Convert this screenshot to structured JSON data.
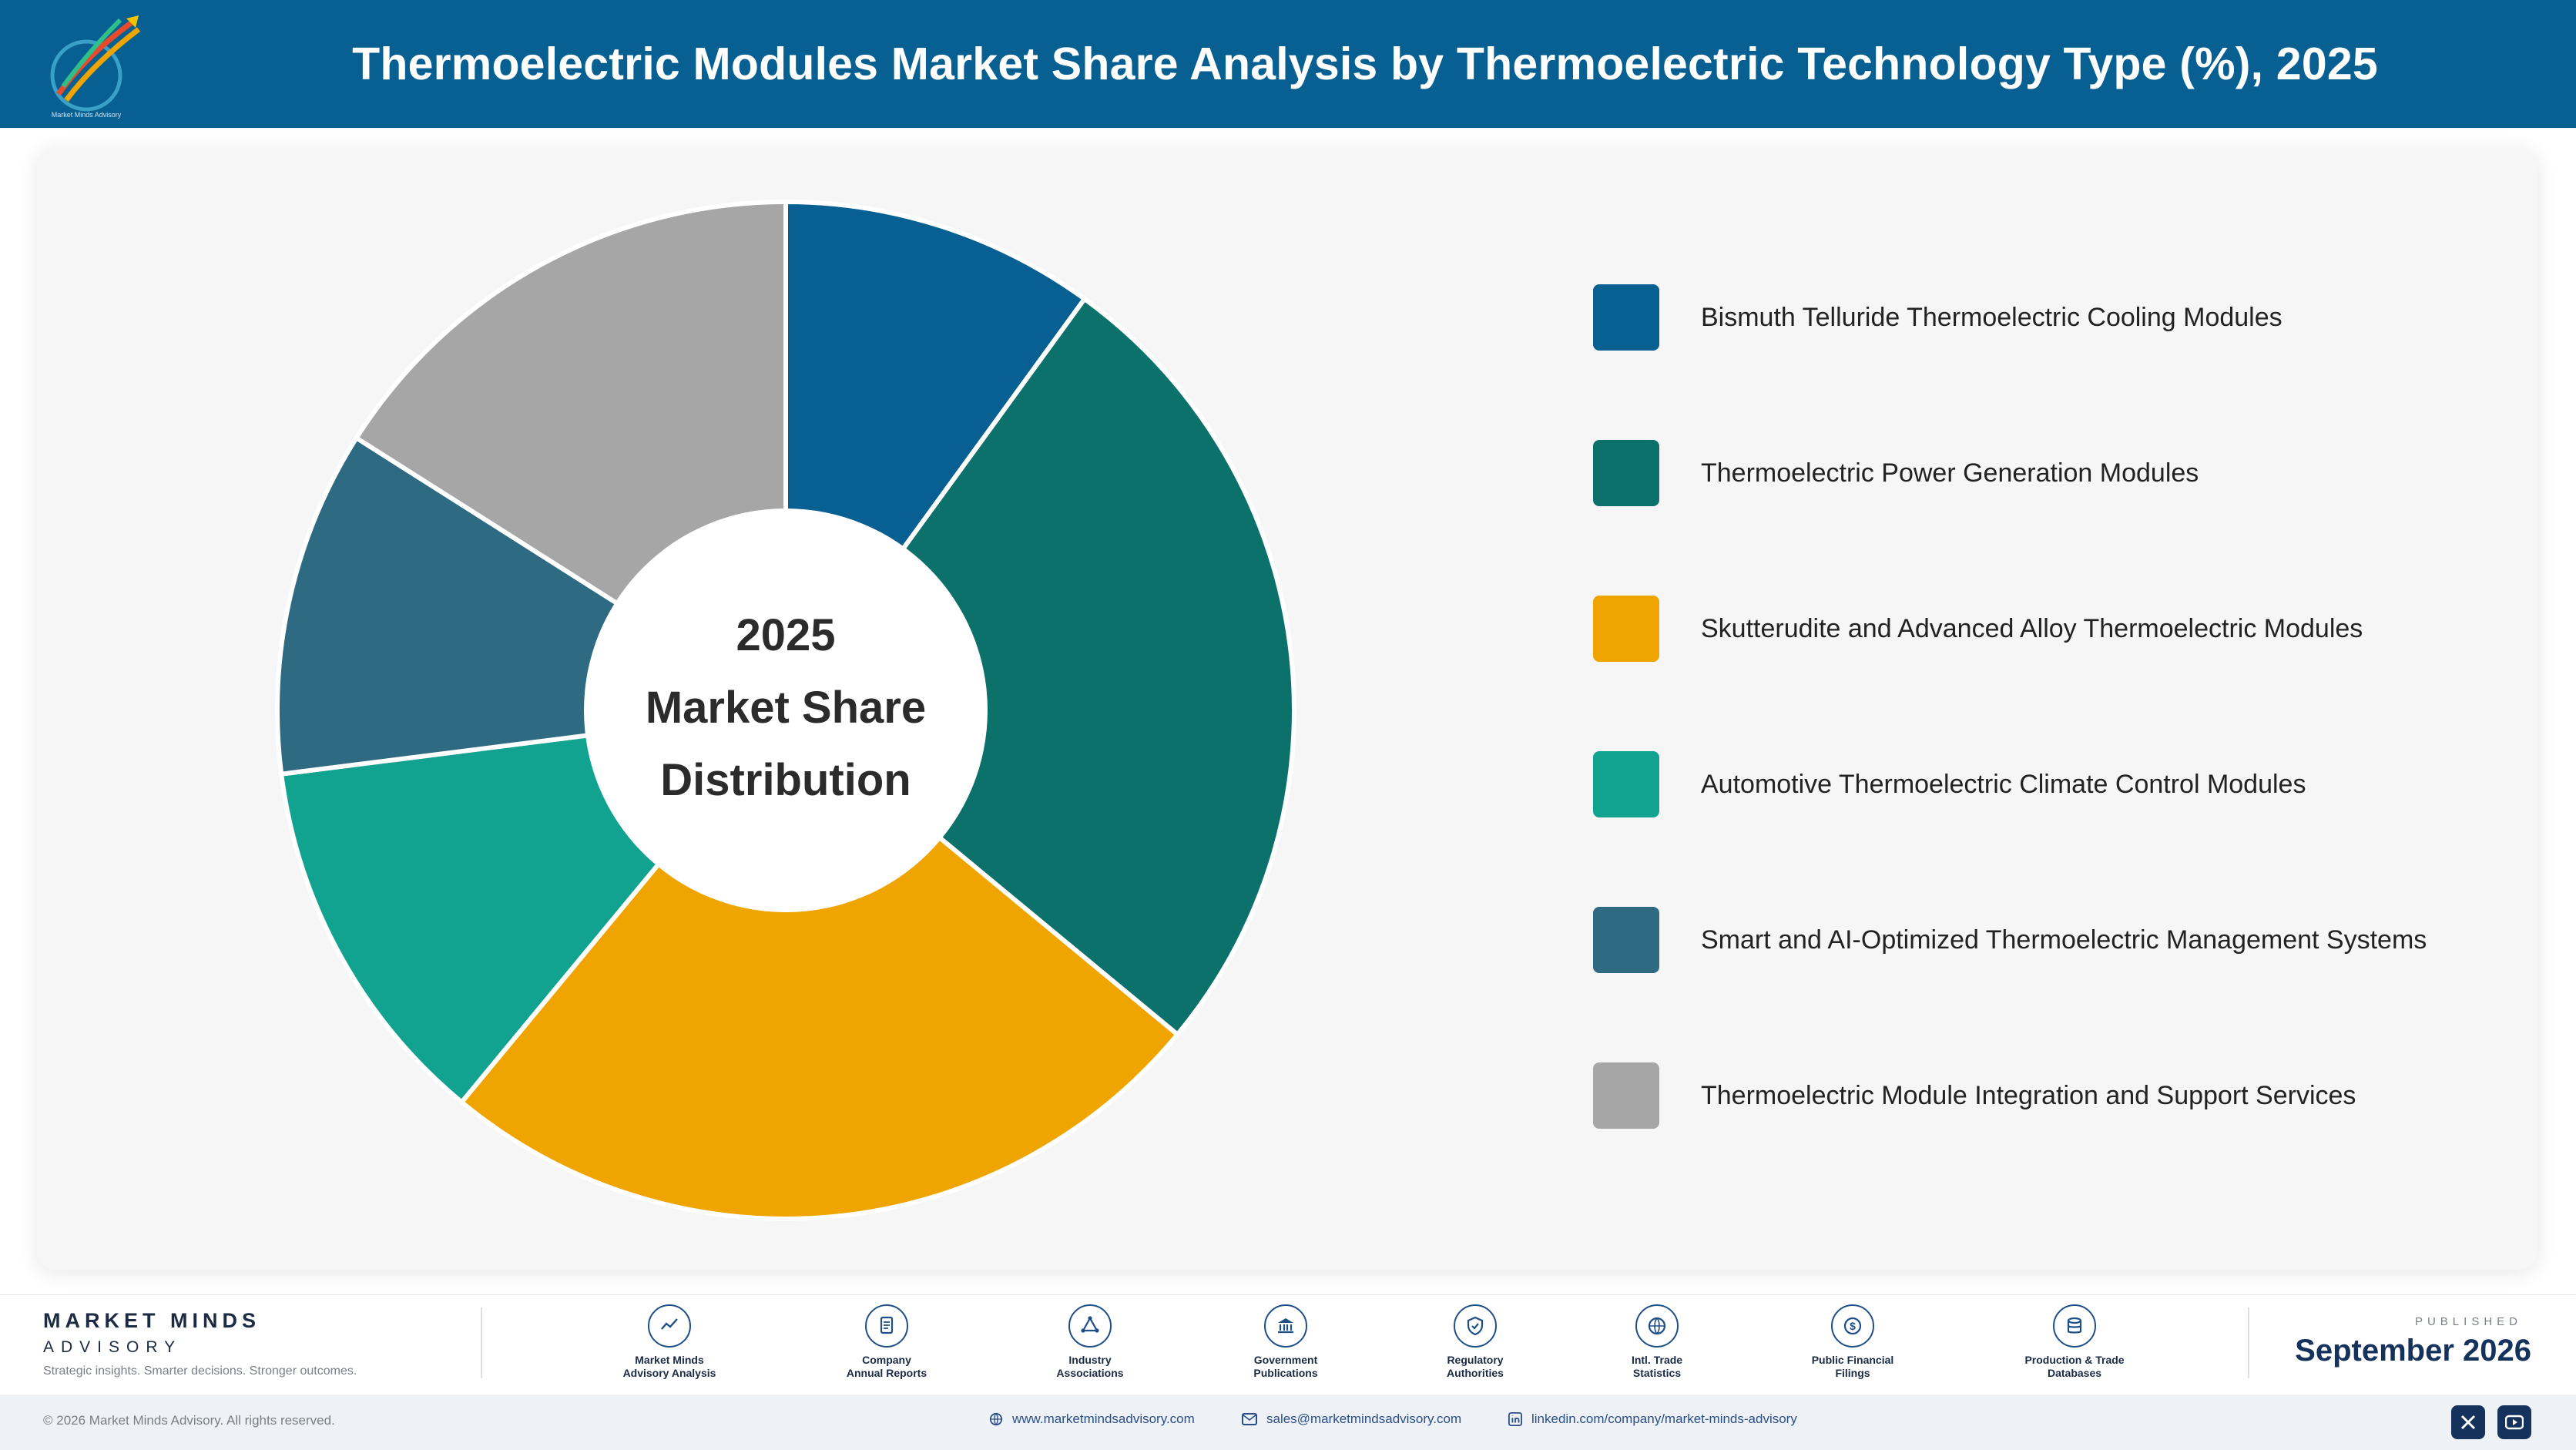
{
  "header": {
    "title": "Thermoelectric Modules Market Share Analysis by Thermoelectric Technology Type (%), 2025",
    "logo_icon": "market-minds-logo-icon"
  },
  "chart_data": {
    "type": "pie",
    "donut": true,
    "title": "Thermoelectric Modules Market Share Analysis by Thermoelectric Technology Type (%), 2025",
    "center_text": [
      "2025",
      "Market Share",
      "Distribution"
    ],
    "categories": [
      "Bismuth Telluride Thermoelectric Cooling Modules",
      "Thermoelectric Power Generation Modules",
      "Skutterudite and Advanced Alloy Thermoelectric Modules",
      "Automotive Thermoelectric Climate Control Modules",
      "Smart and AI-Optimized Thermoelectric Management Systems",
      "Thermoelectric Module Integration and Support Services"
    ],
    "values": [
      10,
      26,
      25,
      12,
      11,
      16
    ],
    "colors": [
      "#075f92",
      "#0c716a",
      "#f0a400",
      "#12a390",
      "#2e6b82",
      "#a6a6a6"
    ],
    "start_angle": "top",
    "direction": "clockwise",
    "legend_position": "right",
    "data_labels": false
  },
  "footer": {
    "brand_name": "MARKET MINDS",
    "brand_sub": "ADVISORY",
    "tagline": "Strategic insights. Smarter decisions. Stronger outcomes.",
    "sources": [
      {
        "line1": "Market Minds",
        "line2": "Advisory Analysis",
        "icon": "trend-line-icon"
      },
      {
        "line1": "Company",
        "line2": "Annual Reports",
        "icon": "document-icon"
      },
      {
        "line1": "Industry",
        "line2": "Associations",
        "icon": "network-icon"
      },
      {
        "line1": "Government",
        "line2": "Publications",
        "icon": "government-building-icon"
      },
      {
        "line1": "Regulatory",
        "line2": "Authorities",
        "icon": "shield-check-icon"
      },
      {
        "line1": "Intl. Trade",
        "line2": "Statistics",
        "icon": "globe-icon"
      },
      {
        "line1": "Public Financial",
        "line2": "Filings",
        "icon": "dollar-coin-icon"
      },
      {
        "line1": "Production & Trade",
        "line2": "Databases",
        "icon": "database-icon"
      }
    ],
    "published_label": "PUBLISHED",
    "published_date": "September 2026"
  },
  "bottom_bar": {
    "copyright": "© 2026 Market Minds Advisory. All rights reserved.",
    "website": "www.marketmindsadvisory.com",
    "email": "sales@marketmindsadvisory.com",
    "linkedin": "linkedin.com/company/market-minds-advisory",
    "social": [
      "x-icon",
      "youtube-icon"
    ]
  }
}
